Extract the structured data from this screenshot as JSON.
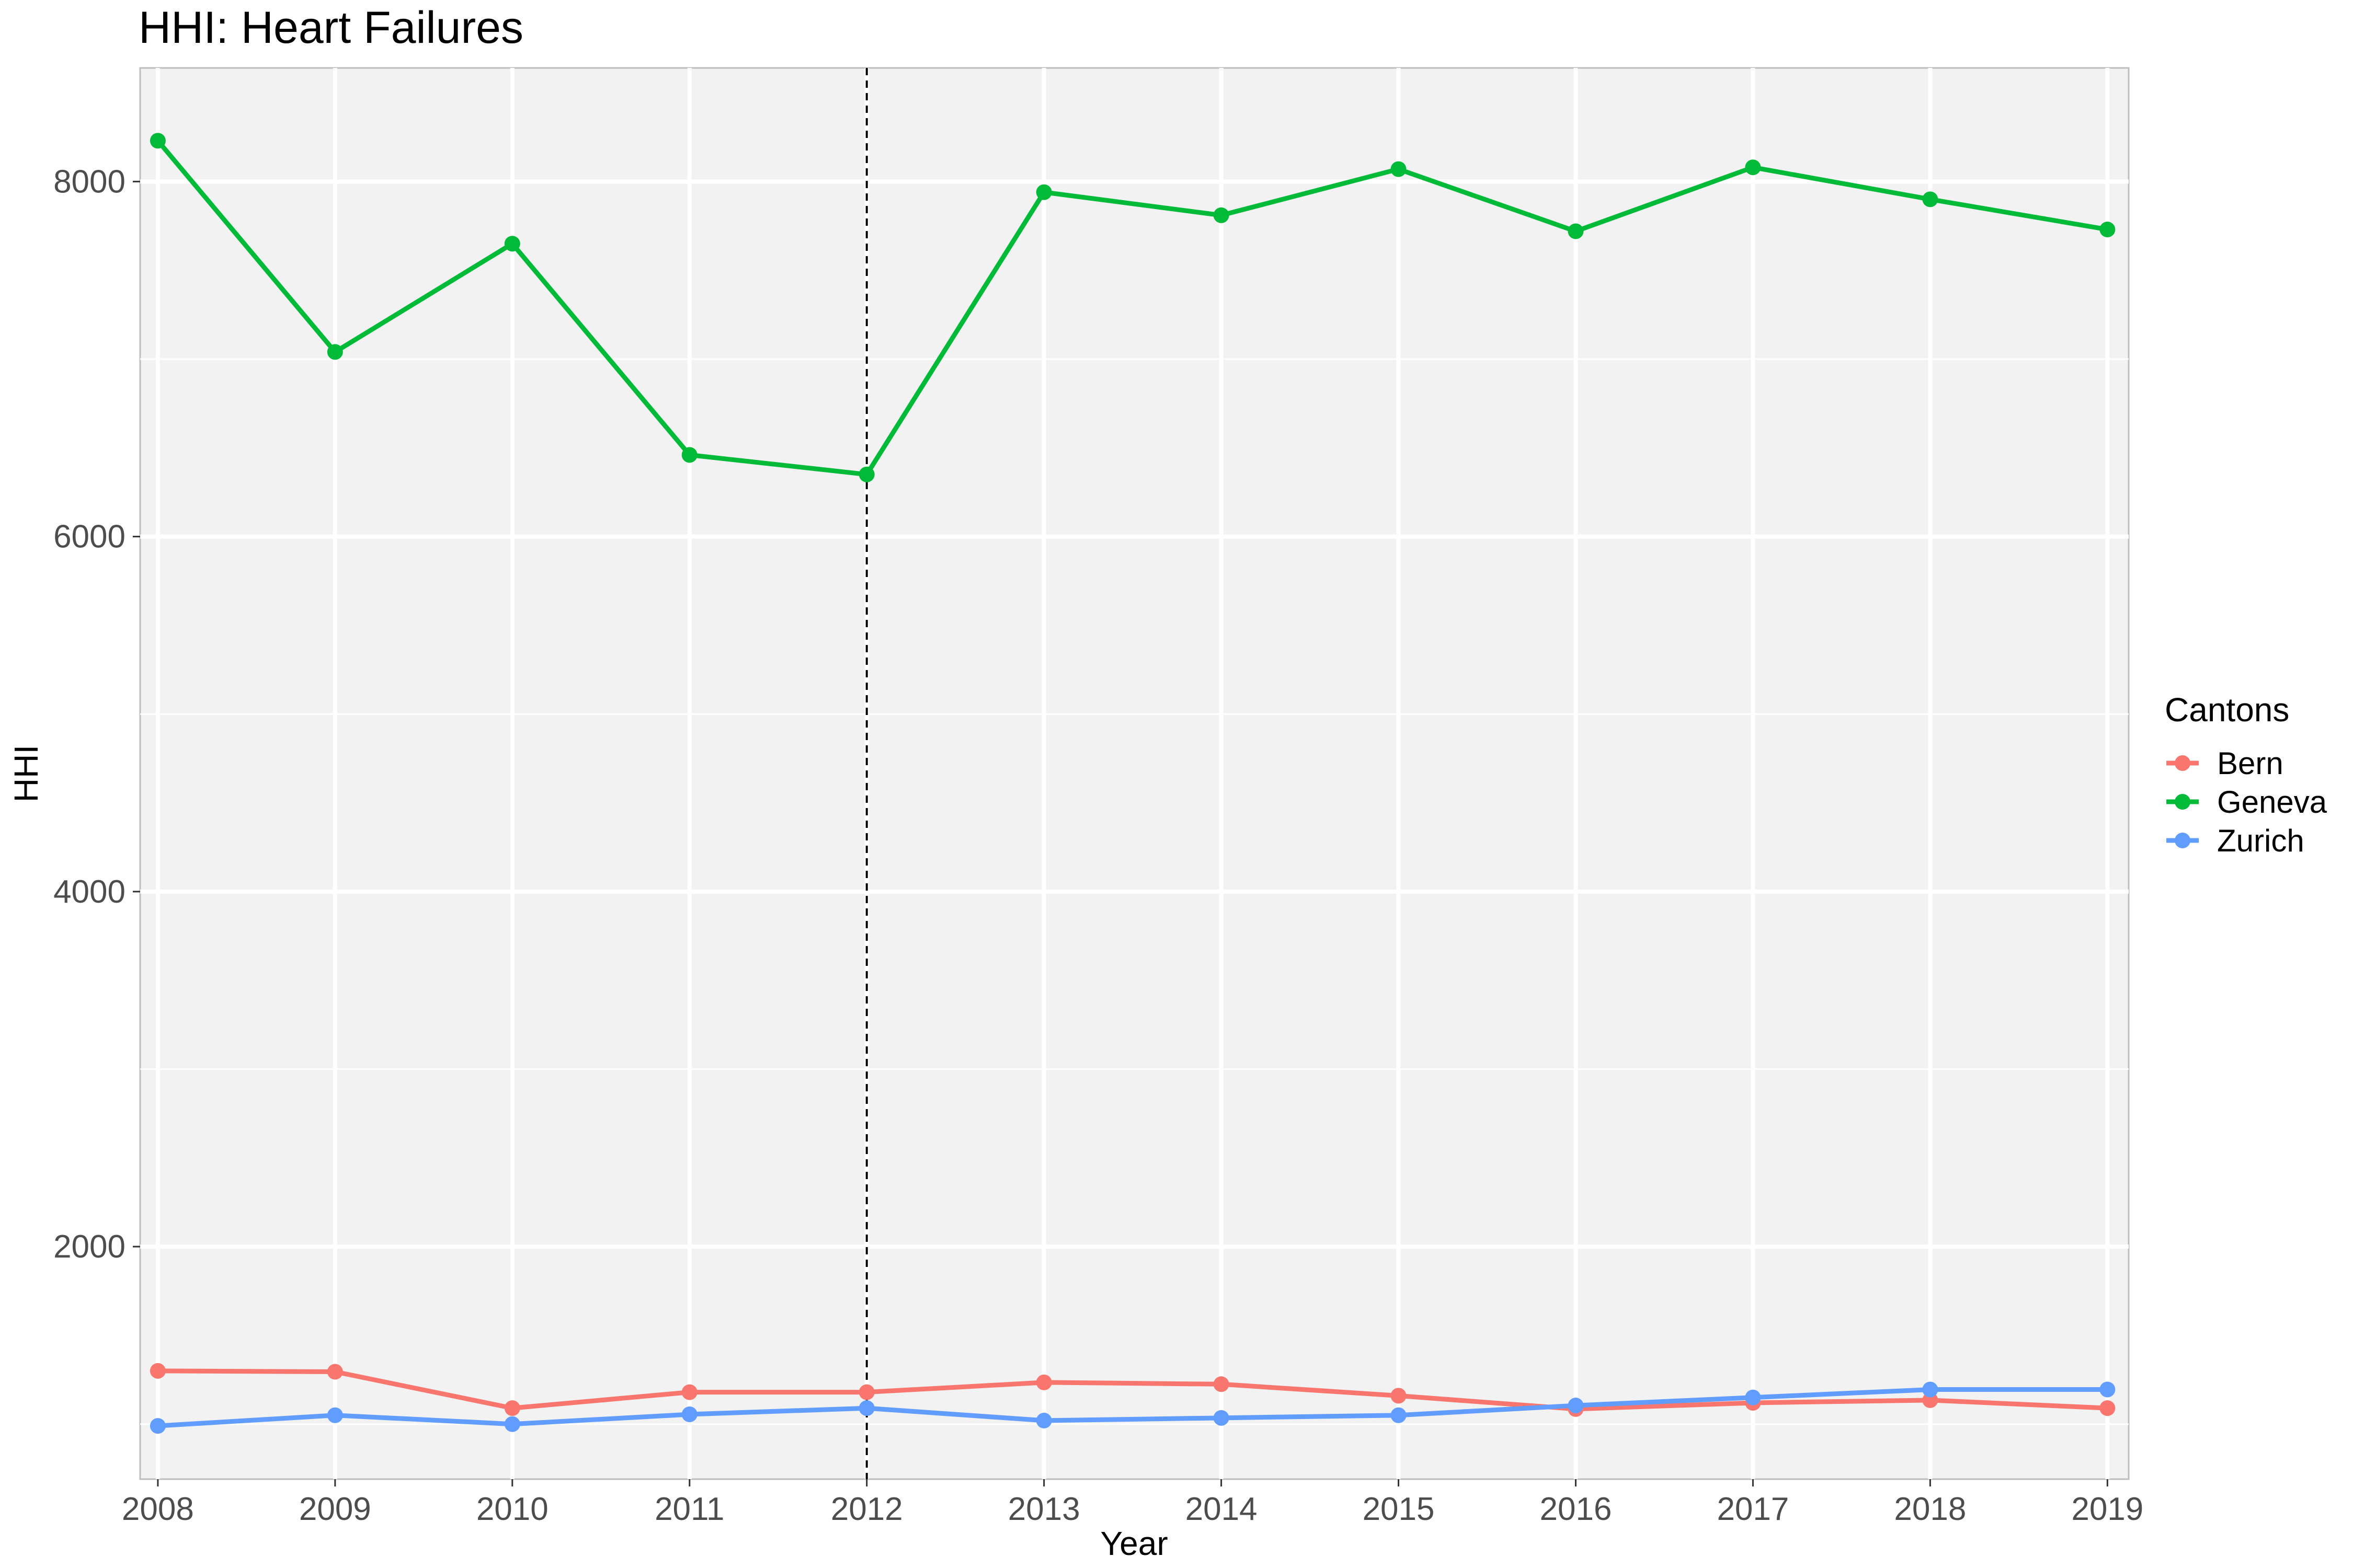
{
  "chart_data": {
    "type": "line",
    "title": "HHI: Heart Failures",
    "xlabel": "Year",
    "ylabel": "HHI",
    "x": [
      2008,
      2009,
      2010,
      2011,
      2012,
      2013,
      2014,
      2015,
      2016,
      2017,
      2018,
      2019
    ],
    "xlim": [
      2007.9,
      2019.12
    ],
    "ylim": [
      690,
      8640
    ],
    "y_ticks": [
      2000,
      4000,
      6000,
      8000
    ],
    "grid": true,
    "vline": {
      "x": 2012,
      "style": "dashed"
    },
    "legend": {
      "title": "Cantons",
      "placement": "right"
    },
    "series": [
      {
        "name": "Bern",
        "color": "#f8766d",
        "values": [
          1300,
          1295,
          1090,
          1180,
          1180,
          1235,
          1225,
          1160,
          1085,
          1120,
          1135,
          1090
        ]
      },
      {
        "name": "Geneva",
        "color": "#00ba38",
        "values": [
          8230,
          7040,
          7650,
          6460,
          6350,
          7940,
          7810,
          8070,
          7720,
          8080,
          7900,
          7730
        ]
      },
      {
        "name": "Zurich",
        "color": "#619cff",
        "values": [
          990,
          1050,
          1000,
          1055,
          1090,
          1020,
          1035,
          1050,
          1105,
          1150,
          1195,
          1195
        ]
      }
    ]
  }
}
